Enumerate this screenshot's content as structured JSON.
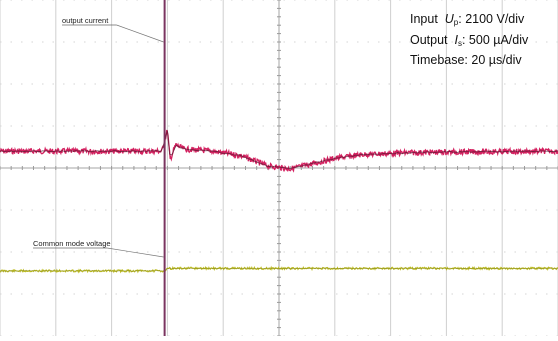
{
  "chart_data": {
    "type": "line",
    "title": "",
    "xlabel": "",
    "ylabel": "",
    "grid": true,
    "divisions": {
      "x": 10,
      "y": 8
    },
    "info": {
      "input": {
        "label": "Input",
        "symbol": "U",
        "subscript": "p",
        "value": ": 2100 V/div"
      },
      "output": {
        "label": "Output",
        "symbol": "I",
        "subscript": "s",
        "value": ": 500 µA/div"
      },
      "timebase": "Timebase: 20 µs/div"
    },
    "series": [
      {
        "name": "output current",
        "color": "#d3205f",
        "units_per_div": "500 µA",
        "baseline_div": 4.4,
        "points": [
          [
            0,
            0
          ],
          [
            2.9,
            0
          ],
          [
            3.0,
            0.5
          ],
          [
            3.05,
            -0.2
          ],
          [
            3.15,
            0.15
          ],
          [
            3.3,
            0.05
          ],
          [
            3.8,
            0
          ],
          [
            4.3,
            -0.1
          ],
          [
            4.8,
            -0.35
          ],
          [
            5.2,
            -0.42
          ],
          [
            5.6,
            -0.3
          ],
          [
            6.0,
            -0.17
          ],
          [
            6.5,
            -0.08
          ],
          [
            7.2,
            -0.04
          ],
          [
            8.0,
            -0.02
          ],
          [
            9.0,
            -0.01
          ],
          [
            10,
            0
          ]
        ]
      },
      {
        "name": "Common mode voltage",
        "color": "#bdbd22",
        "units_per_div": "2100 V",
        "baseline_div": 1.55,
        "points": [
          [
            0,
            0
          ],
          [
            2.95,
            0
          ],
          [
            3.0,
            0.06
          ],
          [
            3.05,
            0.06
          ],
          [
            10,
            0.06
          ]
        ]
      }
    ],
    "trigger_line": {
      "color": "#7a3460",
      "time_div": 2.95
    }
  }
}
